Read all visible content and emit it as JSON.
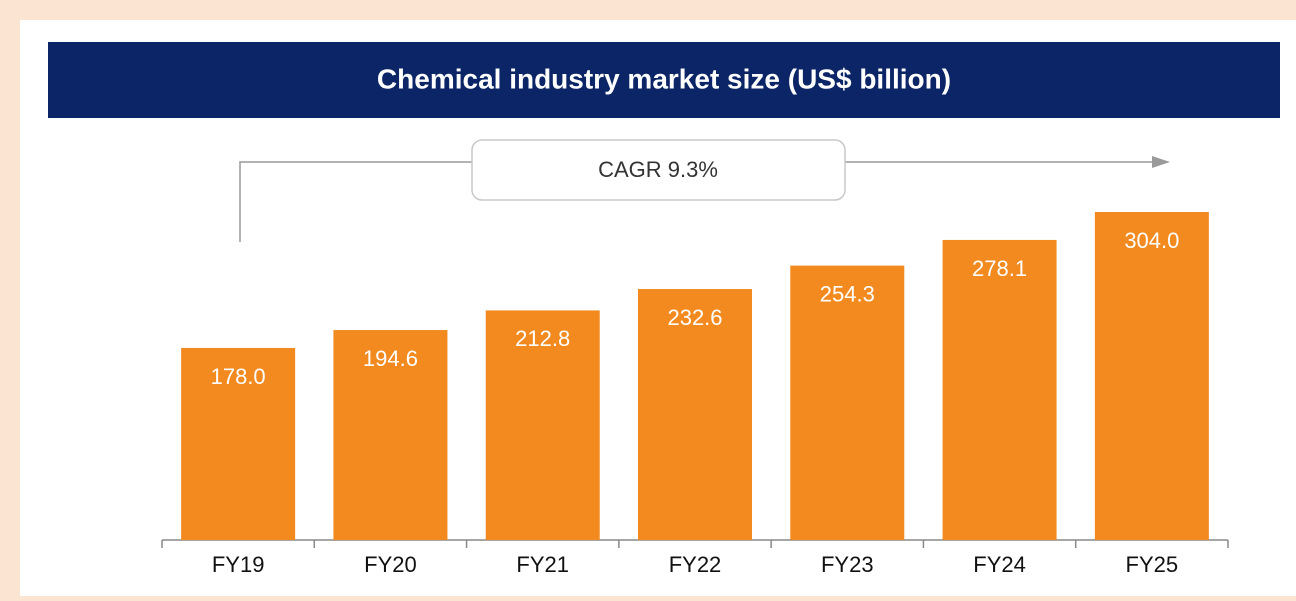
{
  "chart_data": {
    "type": "bar",
    "title": "Chemical industry market size (US$ billion)",
    "annotation": "CAGR 9.3%",
    "categories": [
      "FY19",
      "FY20",
      "FY21",
      "FY22",
      "FY23",
      "FY24",
      "FY25"
    ],
    "values": [
      178.0,
      194.6,
      212.8,
      232.6,
      254.3,
      278.1,
      304.0
    ],
    "value_labels": [
      "178.0",
      "194.6",
      "212.8",
      "232.6",
      "254.3",
      "278.1",
      "304.0"
    ],
    "color": "#f28a20"
  }
}
